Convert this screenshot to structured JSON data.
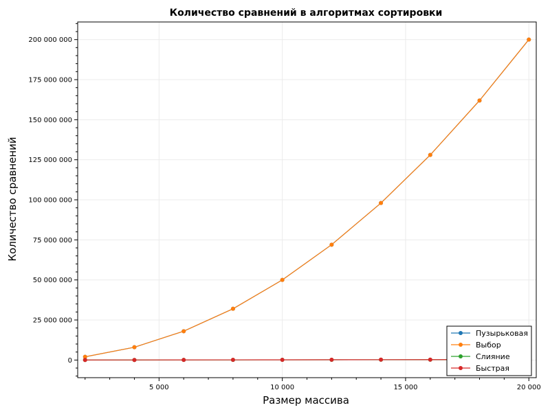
{
  "chart_data": {
    "type": "line",
    "title": "Количество сравнений в алгоритмах сортировки",
    "xlabel": "Размер массива",
    "ylabel": "Количество сравнений",
    "xlim": [
      1700,
      20300
    ],
    "ylim": [
      -11000000,
      211000000
    ],
    "xticks": [
      5000,
      10000,
      15000,
      20000
    ],
    "xtick_labels": [
      "5 000",
      "10 000",
      "15 000",
      "20 000"
    ],
    "yticks": [
      0,
      25000000,
      50000000,
      75000000,
      100000000,
      125000000,
      150000000,
      175000000,
      200000000
    ],
    "ytick_labels": [
      "0",
      "25 000 000",
      "50 000 000",
      "75 000 000",
      "100 000 000",
      "125 000 000",
      "150 000 000",
      "175 000 000",
      "200 000 000"
    ],
    "grid": true,
    "legend_position": "bottom-right",
    "x": [
      2000,
      4000,
      6000,
      8000,
      10000,
      12000,
      14000,
      16000,
      18000,
      20000
    ],
    "series": [
      {
        "name": "Пузырьковая",
        "color": "#1f77b4",
        "values": [
          2000000,
          8000000,
          18000000,
          32000000,
          50000000,
          72000000,
          98000000,
          128000000,
          162000000,
          200000000
        ]
      },
      {
        "name": "Выбор",
        "color": "#ff7f0e",
        "values": [
          2000000,
          8000000,
          18000000,
          32000000,
          50000000,
          72000000,
          98000000,
          128000000,
          162000000,
          200000000
        ]
      },
      {
        "name": "Слияние",
        "color": "#2ca02c",
        "values": [
          20000,
          44000,
          70000,
          95000,
          120000,
          150000,
          175000,
          200000,
          230000,
          260000
        ]
      },
      {
        "name": "Быстрая",
        "color": "#d62728",
        "values": [
          25000,
          55000,
          90000,
          120000,
          155000,
          190000,
          225000,
          260000,
          295000,
          330000
        ]
      }
    ]
  }
}
